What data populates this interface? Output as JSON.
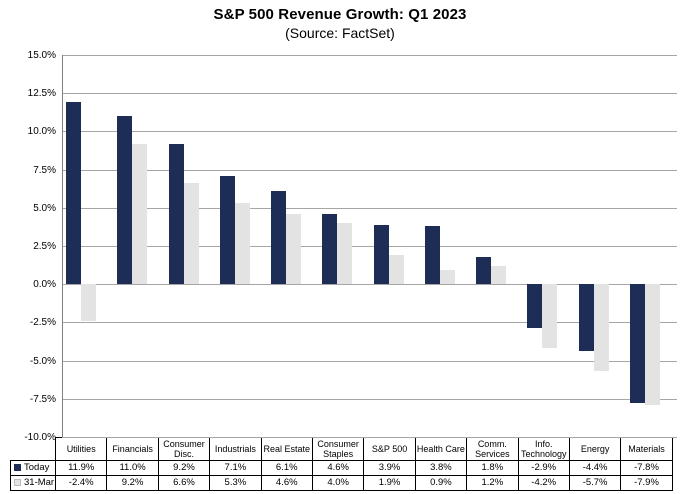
{
  "title": "S&P 500 Revenue Growth: Q1 2023",
  "subtitle": "(Source: FactSet)",
  "chart_data": {
    "type": "bar",
    "categories": [
      "Utilities",
      "Financials",
      "Consumer Disc.",
      "Industrials",
      "Real Estate",
      "Consumer Staples",
      "S&P 500",
      "Health Care",
      "Comm. Services",
      "Info. Technology",
      "Energy",
      "Materials"
    ],
    "series": [
      {
        "name": "Today",
        "color": "#1E2D56",
        "marker_border": "#1E2D56",
        "values": [
          11.9,
          11.0,
          9.2,
          7.1,
          6.1,
          4.6,
          3.9,
          3.8,
          1.8,
          -2.9,
          -4.4,
          -7.8
        ]
      },
      {
        "name": "31-Mar",
        "color": "#E3E3E3",
        "marker_border": "#BDBDBD",
        "values": [
          -2.4,
          9.2,
          6.6,
          5.3,
          4.6,
          4.0,
          1.9,
          0.9,
          1.2,
          -4.2,
          -5.7,
          -7.9
        ]
      }
    ],
    "ylim": [
      -10.0,
      15.0
    ],
    "y_step": 2.5,
    "y_tick_labels": [
      "15.0%",
      "12.5%",
      "10.0%",
      "7.5%",
      "5.0%",
      "2.5%",
      "0.0%",
      "-2.5%",
      "-5.0%",
      "-7.5%",
      "-10.0%"
    ],
    "value_suffix": "%",
    "grid": true,
    "legend_position": "table-rows-left"
  },
  "colors": {
    "gridline": "#A6A6A6",
    "axis_line": "#808080",
    "table_border": "#000000"
  }
}
